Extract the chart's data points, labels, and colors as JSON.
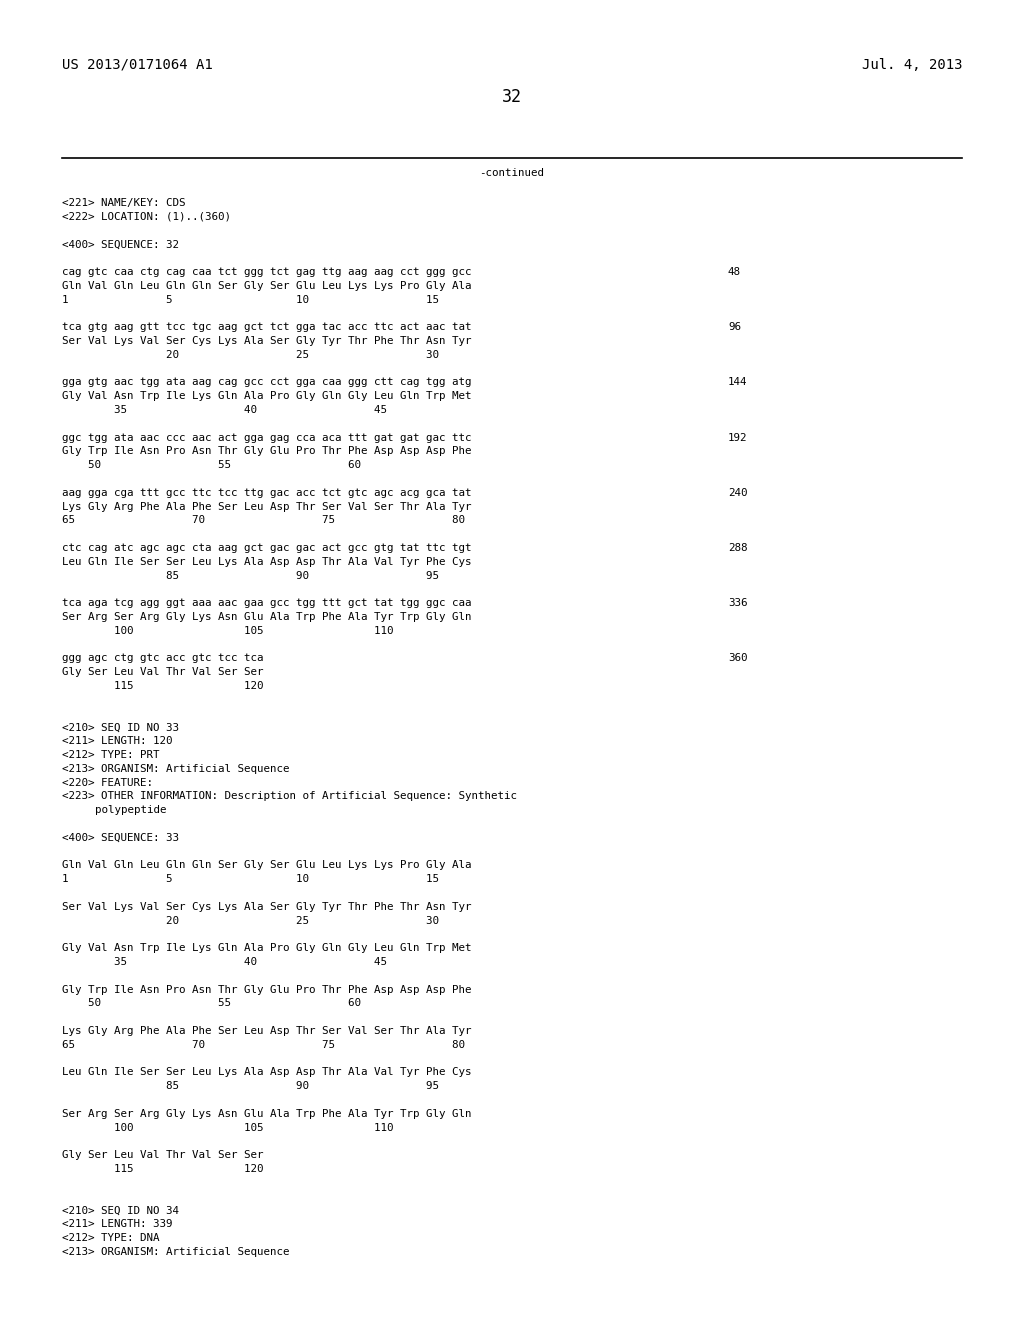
{
  "background_color": "#ffffff",
  "header_left": "US 2013/0171064 A1",
  "header_right": "Jul. 4, 2013",
  "page_number": "32",
  "continued_text": "-continued",
  "content": [
    {
      "type": "seq_dna",
      "text": "cag gtc caa ctg cag caa tct ggg tct gag ttg aag aag cct ggg gcc",
      "num": "48"
    },
    {
      "type": "seq_aa",
      "text": "Gln Val Gln Leu Gln Gln Ser Gly Ser Glu Leu Lys Lys Pro Gly Ala"
    },
    {
      "type": "seq_pos",
      "text": "1               5                   10                  15"
    },
    {
      "type": "blank"
    },
    {
      "type": "seq_dna",
      "text": "tca gtg aag gtt tcc tgc aag gct tct gga tac acc ttc act aac tat",
      "num": "96"
    },
    {
      "type": "seq_aa",
      "text": "Ser Val Lys Val Ser Cys Lys Ala Ser Gly Tyr Thr Phe Thr Asn Tyr"
    },
    {
      "type": "seq_pos",
      "text": "                20                  25                  30"
    },
    {
      "type": "blank"
    },
    {
      "type": "seq_dna",
      "text": "gga gtg aac tgg ata aag cag gcc cct gga caa ggg ctt cag tgg atg",
      "num": "144"
    },
    {
      "type": "seq_aa",
      "text": "Gly Val Asn Trp Ile Lys Gln Ala Pro Gly Gln Gly Leu Gln Trp Met"
    },
    {
      "type": "seq_pos",
      "text": "        35                  40                  45"
    },
    {
      "type": "blank"
    },
    {
      "type": "seq_dna",
      "text": "ggc tgg ata aac ccc aac act gga gag cca aca ttt gat gat gac ttc",
      "num": "192"
    },
    {
      "type": "seq_aa",
      "text": "Gly Trp Ile Asn Pro Asn Thr Gly Glu Pro Thr Phe Asp Asp Asp Phe"
    },
    {
      "type": "seq_pos",
      "text": "    50                  55                  60"
    },
    {
      "type": "blank"
    },
    {
      "type": "seq_dna",
      "text": "aag gga cga ttt gcc ttc tcc ttg gac acc tct gtc agc acg gca tat",
      "num": "240"
    },
    {
      "type": "seq_aa",
      "text": "Lys Gly Arg Phe Ala Phe Ser Leu Asp Thr Ser Val Ser Thr Ala Tyr"
    },
    {
      "type": "seq_pos",
      "text": "65                  70                  75                  80"
    },
    {
      "type": "blank"
    },
    {
      "type": "seq_dna",
      "text": "ctc cag atc agc agc cta aag gct gac gac act gcc gtg tat ttc tgt",
      "num": "288"
    },
    {
      "type": "seq_aa",
      "text": "Leu Gln Ile Ser Ser Leu Lys Ala Asp Asp Thr Ala Val Tyr Phe Cys"
    },
    {
      "type": "seq_pos",
      "text": "                85                  90                  95"
    },
    {
      "type": "blank"
    },
    {
      "type": "seq_dna",
      "text": "tca aga tcg agg ggt aaa aac gaa gcc tgg ttt gct tat tgg ggc caa",
      "num": "336"
    },
    {
      "type": "seq_aa",
      "text": "Ser Arg Ser Arg Gly Lys Asn Glu Ala Trp Phe Ala Tyr Trp Gly Gln"
    },
    {
      "type": "seq_pos",
      "text": "        100                 105                 110"
    },
    {
      "type": "blank"
    },
    {
      "type": "seq_dna",
      "text": "ggg agc ctg gtc acc gtc tcc tca",
      "num": "360"
    },
    {
      "type": "seq_aa",
      "text": "Gly Ser Leu Val Thr Val Ser Ser"
    },
    {
      "type": "seq_pos",
      "text": "        115                 120"
    },
    {
      "type": "blank"
    },
    {
      "type": "blank"
    },
    {
      "type": "meta",
      "text": "<210> SEQ ID NO 33"
    },
    {
      "type": "meta",
      "text": "<211> LENGTH: 120"
    },
    {
      "type": "meta",
      "text": "<212> TYPE: PRT"
    },
    {
      "type": "meta",
      "text": "<213> ORGANISM: Artificial Sequence"
    },
    {
      "type": "meta",
      "text": "<220> FEATURE:"
    },
    {
      "type": "meta",
      "text": "<223> OTHER INFORMATION: Description of Artificial Sequence: Synthetic"
    },
    {
      "type": "meta_ind",
      "text": "polypeptide"
    },
    {
      "type": "blank"
    },
    {
      "type": "meta",
      "text": "<400> SEQUENCE: 33"
    },
    {
      "type": "blank"
    },
    {
      "type": "seq_aa",
      "text": "Gln Val Gln Leu Gln Gln Ser Gly Ser Glu Leu Lys Lys Pro Gly Ala"
    },
    {
      "type": "seq_pos",
      "text": "1               5                   10                  15"
    },
    {
      "type": "blank"
    },
    {
      "type": "seq_aa",
      "text": "Ser Val Lys Val Ser Cys Lys Ala Ser Gly Tyr Thr Phe Thr Asn Tyr"
    },
    {
      "type": "seq_pos",
      "text": "                20                  25                  30"
    },
    {
      "type": "blank"
    },
    {
      "type": "seq_aa",
      "text": "Gly Val Asn Trp Ile Lys Gln Ala Pro Gly Gln Gly Leu Gln Trp Met"
    },
    {
      "type": "seq_pos",
      "text": "        35                  40                  45"
    },
    {
      "type": "blank"
    },
    {
      "type": "seq_aa",
      "text": "Gly Trp Ile Asn Pro Asn Thr Gly Glu Pro Thr Phe Asp Asp Asp Phe"
    },
    {
      "type": "seq_pos",
      "text": "    50                  55                  60"
    },
    {
      "type": "blank"
    },
    {
      "type": "seq_aa",
      "text": "Lys Gly Arg Phe Ala Phe Ser Leu Asp Thr Ser Val Ser Thr Ala Tyr"
    },
    {
      "type": "seq_pos",
      "text": "65                  70                  75                  80"
    },
    {
      "type": "blank"
    },
    {
      "type": "seq_aa",
      "text": "Leu Gln Ile Ser Ser Leu Lys Ala Asp Asp Thr Ala Val Tyr Phe Cys"
    },
    {
      "type": "seq_pos",
      "text": "                85                  90                  95"
    },
    {
      "type": "blank"
    },
    {
      "type": "seq_aa",
      "text": "Ser Arg Ser Arg Gly Lys Asn Glu Ala Trp Phe Ala Tyr Trp Gly Gln"
    },
    {
      "type": "seq_pos",
      "text": "        100                 105                 110"
    },
    {
      "type": "blank"
    },
    {
      "type": "seq_aa",
      "text": "Gly Ser Leu Val Thr Val Ser Ser"
    },
    {
      "type": "seq_pos",
      "text": "        115                 120"
    },
    {
      "type": "blank"
    },
    {
      "type": "blank"
    },
    {
      "type": "meta",
      "text": "<210> SEQ ID NO 34"
    },
    {
      "type": "meta",
      "text": "<211> LENGTH: 339"
    },
    {
      "type": "meta",
      "text": "<212> TYPE: DNA"
    },
    {
      "type": "meta",
      "text": "<213> ORGANISM: Artificial Sequence"
    }
  ]
}
